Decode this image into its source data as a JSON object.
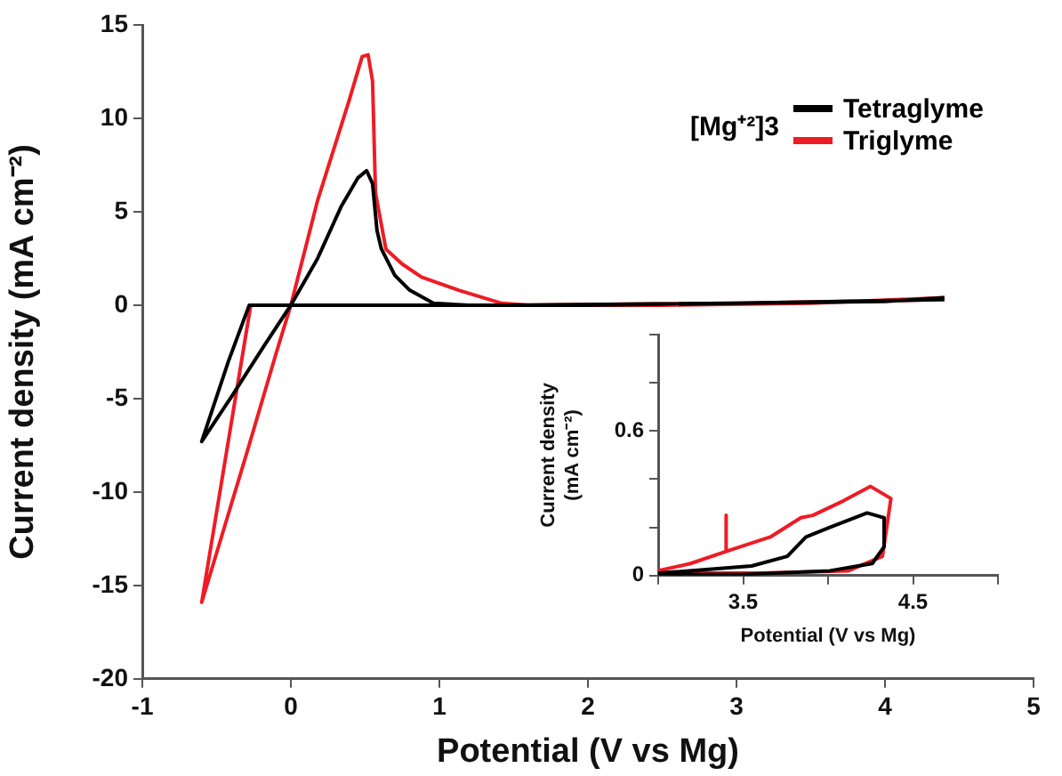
{
  "chart_data": [
    {
      "type": "line",
      "xlabel": "Potential (V vs Mg)",
      "ylabel": "Current density (mA cm⁻²)",
      "legend_title": "[Mg⁺²]3",
      "legend": "top right",
      "grid": false,
      "marker": "none",
      "xlim": [
        -1,
        5
      ],
      "xticks": [
        -1,
        0,
        1,
        2,
        3,
        4,
        5
      ],
      "ylim": [
        -20,
        15
      ],
      "yticks": [
        -20,
        -15,
        -10,
        -5,
        0,
        5,
        10,
        15
      ],
      "series": [
        {
          "name": "Tetraglyme",
          "color": "#000000",
          "x": [
            4.4,
            3.0,
            1.5,
            0,
            -0.28,
            -0.42,
            -0.6,
            -0.4,
            -0.19,
            0,
            0.18,
            0.34,
            0.45,
            0.51,
            0.55,
            0.58,
            0.61,
            0.7,
            0.8,
            0.96,
            1.2,
            2.0,
            3.0,
            4.0,
            4.4
          ],
          "values": [
            0.3,
            0.1,
            0,
            0,
            0,
            -3,
            -7.3,
            -4.9,
            -2.3,
            0,
            2.5,
            5.3,
            6.8,
            7.2,
            6.5,
            4.0,
            3.0,
            1.6,
            0.8,
            0.1,
            0,
            0,
            0.1,
            0.2,
            0.4
          ]
        },
        {
          "name": "Triglyme",
          "color": "#ee1c25",
          "x": [
            4.4,
            3.0,
            1.5,
            0,
            -0.27,
            -0.6,
            -0.3,
            -0.1,
            0,
            0.18,
            0.39,
            0.48,
            0.52,
            0.55,
            0.57,
            0.64,
            0.75,
            0.88,
            1.13,
            1.42,
            1.6,
            2.5,
            3.5,
            4.4
          ],
          "values": [
            0.3,
            0.1,
            0,
            0,
            0,
            -15.9,
            -8,
            -2.6,
            0,
            5.6,
            10.9,
            13.3,
            13.4,
            12,
            6,
            3.0,
            2.2,
            1.5,
            0.8,
            0.1,
            0,
            0,
            0.1,
            0.4
          ]
        }
      ]
    },
    {
      "type": "line",
      "xlabel": "Potential (V vs Mg)",
      "ylabel": "Current density (mA cm⁻²)",
      "grid": false,
      "marker": "none",
      "xlim": [
        3,
        5
      ],
      "xticks": [
        {
          "value": 3,
          "label": null
        },
        3.5,
        {
          "value": 4,
          "label": null
        },
        4.5,
        {
          "value": 5,
          "label": null
        }
      ],
      "ylim": [
        0,
        1
      ],
      "yticks": [
        0,
        {
          "value": 0.2,
          "label": null
        },
        {
          "value": 0.4,
          "label": null
        },
        0.6,
        {
          "value": 0.8,
          "label": null
        },
        {
          "value": 1,
          "label": null
        }
      ],
      "series": [
        {
          "color": "#000000",
          "x": [
            3.0,
            3.55,
            3.76,
            3.87,
            4.01,
            4.23,
            4.33,
            4.33,
            4.26,
            4.01,
            3.5,
            3.0
          ],
          "values": [
            0.01,
            0.04,
            0.08,
            0.16,
            0.2,
            0.26,
            0.24,
            0.12,
            0.05,
            0.02,
            0.005,
            0.005
          ]
        },
        {
          "color": "#ee1c25",
          "x": [
            3.0,
            3.19,
            3.4,
            3.4,
            3.4,
            3.66,
            3.84,
            3.91,
            4.09,
            4.25,
            4.37,
            4.32,
            4.12,
            3.6,
            3.0
          ],
          "values": [
            0.02,
            0.05,
            0.1,
            0.25,
            0.1,
            0.16,
            0.24,
            0.25,
            0.31,
            0.37,
            0.32,
            0.08,
            0.02,
            0.01,
            0.01
          ]
        }
      ]
    }
  ]
}
